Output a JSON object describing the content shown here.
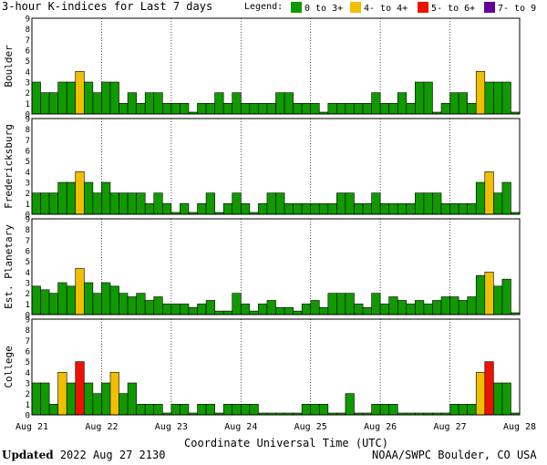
{
  "header": {
    "title": "3-hour K-indices for Last 7 days",
    "legend_title": "Legend:",
    "legend": [
      {
        "label": "0 to 3+",
        "color": "#119900"
      },
      {
        "label": "4- to 4+",
        "color": "#f0bf00"
      },
      {
        "label": "5- to 6+",
        "color": "#ee1100"
      },
      {
        "label": "7- to 9",
        "color": "#660099"
      }
    ]
  },
  "footer": {
    "updated_label": "Updated",
    "updated_time": "2022 Aug 27 2130",
    "credit": "NOAA/SWPC Boulder, CO USA"
  },
  "chart_data": {
    "type": "bar",
    "title": "3-hour K-indices for Last 7 days",
    "xlabel": "Coordinate Universal Time (UTC)",
    "x_ticks": [
      "Aug 21",
      "Aug 22",
      "Aug 23",
      "Aug 24",
      "Aug 25",
      "Aug 26",
      "Aug 27",
      "Aug 28"
    ],
    "ylim": [
      0,
      9
    ],
    "y_ticks": [
      0,
      1,
      2,
      3,
      4,
      5,
      6,
      7,
      8,
      9
    ],
    "color_scale": {
      "0-3": "#119900",
      "4": "#f0bf00",
      "5-6": "#ee1100",
      "7-9": "#660099"
    },
    "panels": [
      {
        "name": "Boulder",
        "values": [
          3,
          2,
          2,
          3,
          3,
          4,
          3,
          2,
          3,
          3,
          1,
          2,
          1,
          2,
          2,
          1,
          1,
          1,
          0,
          1,
          1,
          2,
          1,
          2,
          1,
          1,
          1,
          1,
          2,
          2,
          1,
          1,
          1,
          0,
          1,
          1,
          1,
          1,
          1,
          2,
          1,
          1,
          2,
          1,
          3,
          3,
          0,
          1,
          2,
          2,
          1,
          4,
          3,
          3,
          3,
          0
        ]
      },
      {
        "name": "Fredericksburg",
        "values": [
          2,
          2,
          2,
          3,
          3,
          4,
          3,
          2,
          3,
          2,
          2,
          2,
          2,
          1,
          2,
          1,
          0,
          1,
          0,
          1,
          2,
          0,
          1,
          2,
          1,
          0,
          1,
          2,
          2,
          1,
          1,
          1,
          1,
          1,
          1,
          2,
          2,
          1,
          1,
          2,
          1,
          1,
          1,
          1,
          2,
          2,
          2,
          1,
          1,
          1,
          1,
          3,
          4,
          2,
          3,
          0
        ]
      },
      {
        "name": "Est. Planetary",
        "values": [
          2.67,
          2.33,
          2,
          3,
          2.67,
          4.33,
          3,
          2,
          3,
          2.67,
          2,
          1.67,
          2,
          1.33,
          1.67,
          1,
          1,
          1,
          0.67,
          1,
          1.33,
          0.33,
          0.33,
          2,
          1,
          0.33,
          1,
          1.33,
          0.67,
          0.67,
          0.33,
          1,
          1.33,
          0.67,
          2,
          2,
          2,
          1,
          0.67,
          2,
          1,
          1.67,
          1.33,
          1,
          1.33,
          1,
          1.33,
          1.67,
          1.67,
          1.33,
          1.67,
          3.67,
          4,
          2.67,
          3.33,
          0
        ]
      },
      {
        "name": "College",
        "values": [
          3,
          3,
          1,
          4,
          3,
          5,
          3,
          2,
          3,
          4,
          2,
          3,
          1,
          1,
          1,
          0,
          1,
          1,
          0,
          1,
          1,
          0,
          1,
          1,
          1,
          1,
          0,
          0,
          0,
          0,
          0,
          1,
          1,
          1,
          0,
          0,
          2,
          0,
          0,
          1,
          1,
          1,
          0,
          0,
          0,
          0,
          0,
          0,
          1,
          1,
          1,
          4,
          5,
          3,
          3,
          0
        ]
      }
    ]
  }
}
